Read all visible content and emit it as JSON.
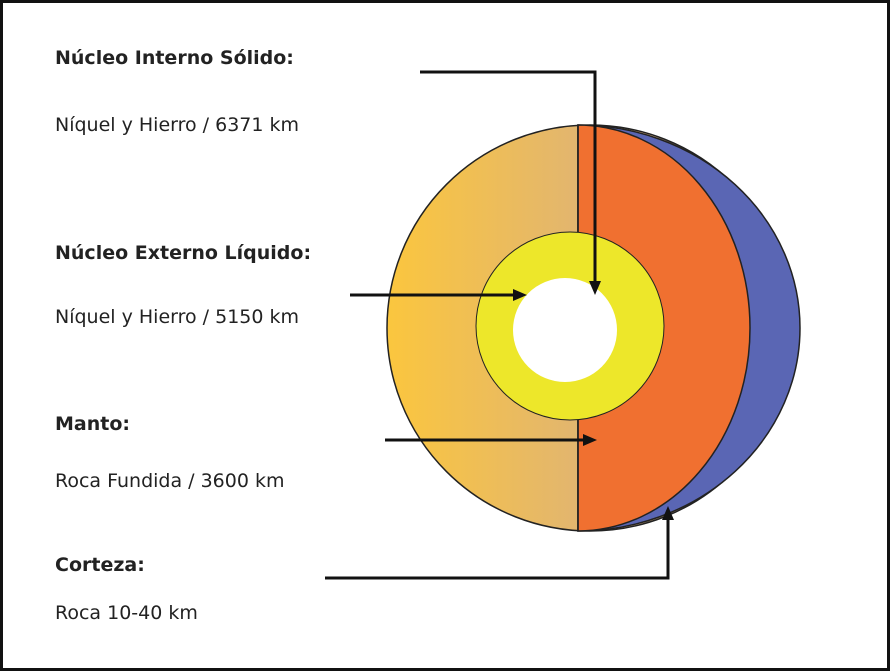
{
  "layers": [
    {
      "title": "Núcleo Interno Sólido:",
      "description": "Níquel y Hierro / 6371 km"
    },
    {
      "title": "Núcleo Externo Líquido:",
      "description": "Níquel y Hierro / 5150 km"
    },
    {
      "title": "Manto:",
      "description": "Roca Fundida / 3600 km"
    },
    {
      "title": "Corteza:",
      "description": "Roca 10-40 km"
    }
  ]
}
